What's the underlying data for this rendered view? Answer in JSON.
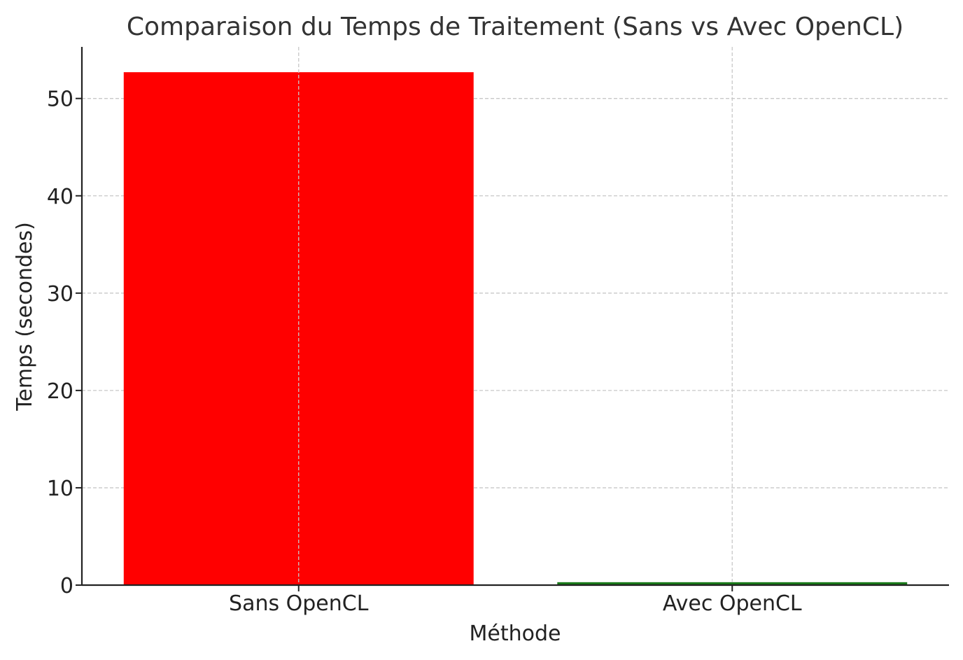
{
  "chart_data": {
    "type": "bar",
    "title": "Comparaison du Temps de Traitement (Sans vs Avec OpenCL)",
    "xlabel": "Méthode",
    "ylabel": "Temps (secondes)",
    "categories": [
      "Sans OpenCL",
      "Avec OpenCL"
    ],
    "values": [
      52.7,
      0.3
    ],
    "colors": [
      "#ff0000",
      "#1a7a1a"
    ],
    "ylim": [
      0,
      55.3
    ],
    "yticks": [
      0,
      10,
      20,
      30,
      40,
      50
    ],
    "grid": true
  }
}
